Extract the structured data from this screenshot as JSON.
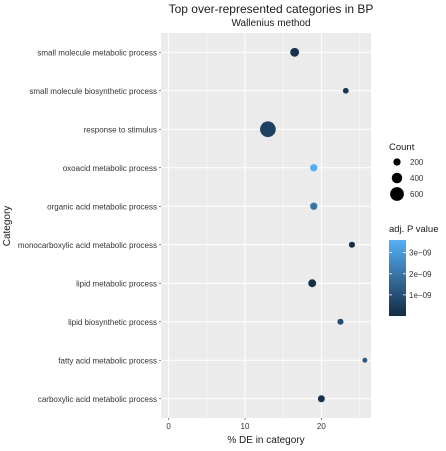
{
  "chart_data": {
    "type": "scatter",
    "title": "Top over-represented categories in BP",
    "subtitle": "Wallenius  method",
    "xlabel": "% DE in category",
    "ylabel": "Category",
    "xlim": [
      -1,
      26.5
    ],
    "x_ticks": [
      0,
      10,
      20
    ],
    "x_tick_labels": [
      "0",
      "10",
      "20"
    ],
    "grid": true,
    "categories": [
      "small molecule metabolic process",
      "small molecule biosynthetic process",
      "response to stimulus",
      "oxoacid metabolic process",
      "organic acid metabolic process",
      "monocarboxylic acid metabolic process",
      "lipid metabolic process",
      "lipid biosynthetic process",
      "fatty acid metabolic process",
      "carboxylic acid metabolic process"
    ],
    "x": [
      16.5,
      23.2,
      13.0,
      19.0,
      19.0,
      24.0,
      18.8,
      22.5,
      25.7,
      20.0
    ],
    "count": [
      300,
      110,
      720,
      200,
      200,
      130,
      240,
      130,
      60,
      180
    ],
    "adj_p": [
      2e-10,
      3e-10,
      6e-10,
      3.5e-09,
      2e-09,
      1e-10,
      1e-10,
      9e-10,
      1.2e-09,
      2e-10
    ],
    "size_legend": {
      "title": "Count",
      "values": [
        200,
        400,
        600
      ],
      "labels": [
        "200",
        "400",
        "600"
      ]
    },
    "color_legend": {
      "title": "adj. P value",
      "range": [
        0,
        3.6e-09
      ],
      "ticks": [
        1e-09,
        2e-09,
        3e-09
      ],
      "labels": [
        "1e−09",
        "2e−09",
        "3e−09"
      ],
      "low_color": "#132B43",
      "high_color": "#56B1F7"
    },
    "panel_color": "#EBEBEB",
    "grid_color": "#FFFFFF"
  }
}
